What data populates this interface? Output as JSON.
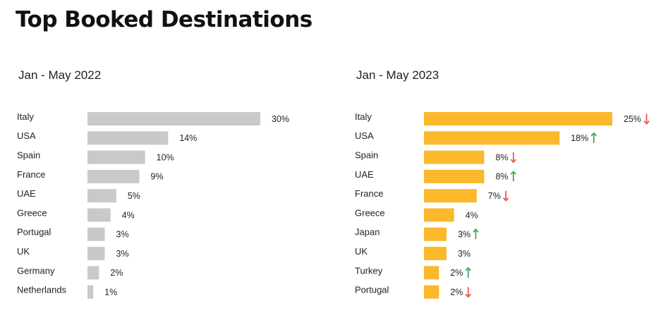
{
  "title": "Top Booked Destinations",
  "colors": {
    "bar_2022": "#c9c9c9",
    "bar_2023": "#fbb82a",
    "up": "#2e9e4a",
    "down": "#e8443a"
  },
  "chart_data": [
    {
      "type": "bar",
      "orientation": "horizontal",
      "title": "Jan - May 2022",
      "categories": [
        "Italy",
        "USA",
        "Spain",
        "France",
        "UAE",
        "Greece",
        "Portugal",
        "UK",
        "Germany",
        "Netherlands"
      ],
      "values": [
        30,
        14,
        10,
        9,
        5,
        4,
        3,
        3,
        2,
        1
      ],
      "value_labels": [
        "30%",
        "14%",
        "10%",
        "9%",
        "5%",
        "4%",
        "3%",
        "3%",
        "2%",
        "1%"
      ],
      "unit": "%",
      "xlim": [
        0,
        30
      ],
      "grid": false,
      "legend": "none"
    },
    {
      "type": "bar",
      "orientation": "horizontal",
      "title": "Jan - May 2023",
      "categories": [
        "Italy",
        "USA",
        "Spain",
        "UAE",
        "France",
        "Greece",
        "Japan",
        "UK",
        "Turkey",
        "Portugal"
      ],
      "values": [
        25,
        18,
        8,
        8,
        7,
        4,
        3,
        3,
        2,
        2
      ],
      "value_labels": [
        "25%",
        "18%",
        "8%",
        "8%",
        "7%",
        "4%",
        "3%",
        "3%",
        "2%",
        "2%"
      ],
      "trend": [
        "down",
        "up",
        "down",
        "up",
        "down",
        "",
        "up",
        "",
        "up",
        "down"
      ],
      "unit": "%",
      "xlim": [
        0,
        25
      ],
      "grid": false,
      "legend": "none"
    }
  ]
}
